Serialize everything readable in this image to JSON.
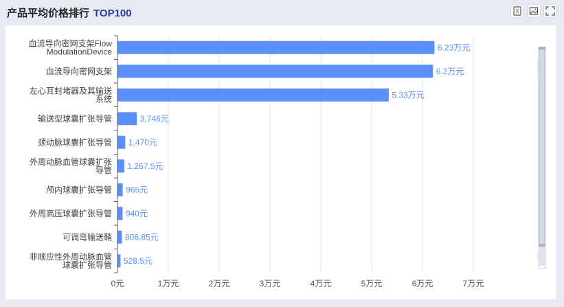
{
  "header": {
    "title": "产品平均价格排行",
    "title_suffix": "TOP100",
    "tools": [
      {
        "name": "export-excel-icon"
      },
      {
        "name": "save-image-icon"
      },
      {
        "name": "fullscreen-icon"
      }
    ]
  },
  "chart_data": {
    "type": "bar",
    "orientation": "horizontal",
    "categories": [
      [
        "血流导向密网支架Flow",
        "ModulationDevice"
      ],
      [
        "血流导向密网支架"
      ],
      [
        "左心耳封堵器及其输送",
        "系统"
      ],
      [
        "输送型球囊扩张导管"
      ],
      [
        "颈动脉球囊扩张导管"
      ],
      [
        "外周动脉血管球囊扩张",
        "导管"
      ],
      [
        "颅内球囊扩张导管"
      ],
      [
        "外周高压球囊扩张导管"
      ],
      [
        "可调弯输送鞘"
      ],
      [
        "非顺应性外周动脉血管",
        "球囊扩张导管"
      ]
    ],
    "values": [
      62300,
      62000,
      53300,
      3746,
      1470,
      1267.5,
      965,
      940,
      806.85,
      528.5
    ],
    "value_labels": [
      "6.23万元",
      "6.2万元",
      "5.33万元",
      "3,746元",
      "1,470元",
      "1,267.5元",
      "965元",
      "940元",
      "806.85元",
      "528.5元"
    ],
    "x_ticks": [
      "0元",
      "1万元",
      "2万元",
      "3万元",
      "4万元",
      "5万元",
      "6万元",
      "7万元"
    ],
    "xlim": [
      0,
      70000
    ],
    "grid": true,
    "colors": {
      "bar": "#5b8ff9",
      "label": "#5b8ff9",
      "grid": "#e6e6e6"
    }
  }
}
